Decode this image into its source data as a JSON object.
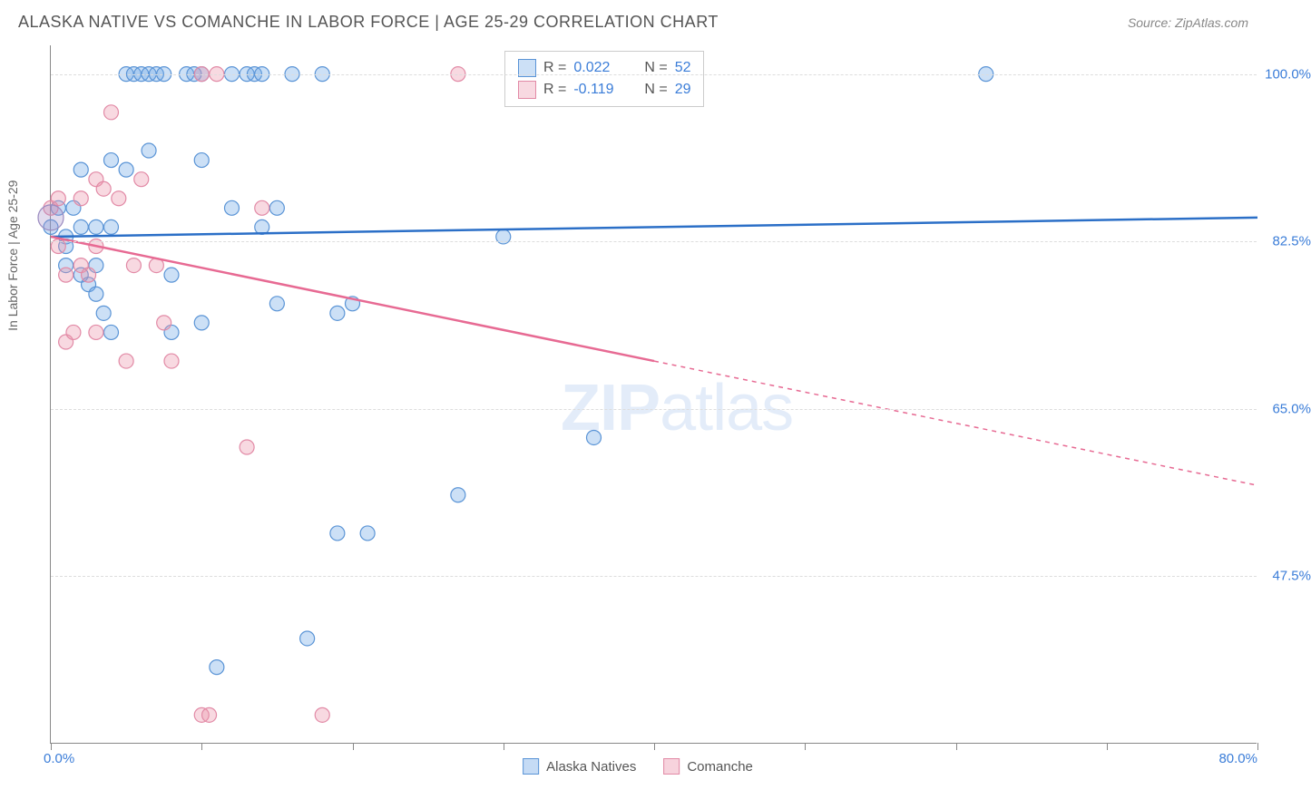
{
  "title": "ALASKA NATIVE VS COMANCHE IN LABOR FORCE | AGE 25-29 CORRELATION CHART",
  "source": "Source: ZipAtlas.com",
  "ylabel": "In Labor Force | Age 25-29",
  "watermark_bold": "ZIP",
  "watermark_rest": "atlas",
  "xaxis": {
    "min_label": "0.0%",
    "max_label": "80.0%",
    "min": 0,
    "max": 80
  },
  "yaxis": {
    "ticks": [
      {
        "v": 100.0,
        "label": "100.0%"
      },
      {
        "v": 82.5,
        "label": "82.5%"
      },
      {
        "v": 65.0,
        "label": "65.0%"
      },
      {
        "v": 47.5,
        "label": "47.5%"
      }
    ],
    "min": 30,
    "max": 103
  },
  "xtick_positions": [
    0,
    10,
    20,
    30,
    40,
    50,
    60,
    70,
    80
  ],
  "series": [
    {
      "name": "Alaska Natives",
      "color_fill": "rgba(110,165,230,0.35)",
      "color_stroke": "#5a94d6",
      "line_color": "#2b6fc7",
      "R": "0.022",
      "N": "52",
      "trend": {
        "x1": 0,
        "y1": 83.0,
        "x2": 80,
        "y2": 85.0,
        "dash_from_x": 80
      },
      "points": [
        [
          0,
          84
        ],
        [
          0.5,
          86
        ],
        [
          1,
          83
        ],
        [
          1,
          80
        ],
        [
          1,
          82
        ],
        [
          1.5,
          86
        ],
        [
          2,
          90
        ],
        [
          2,
          84
        ],
        [
          2,
          79
        ],
        [
          2.5,
          78
        ],
        [
          3,
          84
        ],
        [
          3,
          80
        ],
        [
          3,
          77
        ],
        [
          3.5,
          75
        ],
        [
          4,
          91
        ],
        [
          4,
          84
        ],
        [
          4,
          73
        ],
        [
          5,
          100
        ],
        [
          5,
          90
        ],
        [
          5.5,
          100
        ],
        [
          6,
          100
        ],
        [
          6.5,
          100
        ],
        [
          6.5,
          92
        ],
        [
          7,
          100
        ],
        [
          7.5,
          100
        ],
        [
          8,
          79
        ],
        [
          8,
          73
        ],
        [
          9,
          100
        ],
        [
          9.5,
          100
        ],
        [
          10,
          100
        ],
        [
          10,
          91
        ],
        [
          10,
          74
        ],
        [
          11,
          38
        ],
        [
          12,
          100
        ],
        [
          12,
          86
        ],
        [
          13,
          100
        ],
        [
          13.5,
          100
        ],
        [
          14,
          100
        ],
        [
          14,
          84
        ],
        [
          15,
          76
        ],
        [
          15,
          86
        ],
        [
          16,
          100
        ],
        [
          17,
          41
        ],
        [
          18,
          100
        ],
        [
          19,
          75
        ],
        [
          19,
          52
        ],
        [
          20,
          76
        ],
        [
          21,
          52
        ],
        [
          27,
          56
        ],
        [
          30,
          83
        ],
        [
          36,
          62
        ],
        [
          62,
          100
        ]
      ]
    },
    {
      "name": "Comanche",
      "color_fill": "rgba(235,145,170,0.35)",
      "color_stroke": "#e28aa6",
      "line_color": "#e76a93",
      "R": "-0.119",
      "N": "29",
      "trend": {
        "x1": 0,
        "y1": 83.0,
        "x2": 80,
        "y2": 57.0,
        "dash_from_x": 40
      },
      "points": [
        [
          0,
          86
        ],
        [
          0.5,
          82
        ],
        [
          0.5,
          87
        ],
        [
          1,
          79
        ],
        [
          1,
          72
        ],
        [
          1.5,
          73
        ],
        [
          2,
          87
        ],
        [
          2,
          80
        ],
        [
          2.5,
          79
        ],
        [
          3,
          89
        ],
        [
          3,
          82
        ],
        [
          3,
          73
        ],
        [
          3.5,
          88
        ],
        [
          4,
          96
        ],
        [
          4.5,
          87
        ],
        [
          5,
          70
        ],
        [
          5.5,
          80
        ],
        [
          6,
          89
        ],
        [
          7,
          80
        ],
        [
          7.5,
          74
        ],
        [
          8,
          70
        ],
        [
          10,
          100
        ],
        [
          10,
          33
        ],
        [
          10.5,
          33
        ],
        [
          11,
          100
        ],
        [
          13,
          61
        ],
        [
          14,
          86
        ],
        [
          18,
          33
        ],
        [
          27,
          100
        ]
      ]
    }
  ],
  "bottom_legend": [
    {
      "label": "Alaska Natives",
      "fill": "rgba(110,165,230,0.4)",
      "stroke": "#5a94d6"
    },
    {
      "label": "Comanche",
      "fill": "rgba(235,145,170,0.4)",
      "stroke": "#e28aa6"
    }
  ],
  "chart_bg": "#ffffff",
  "grid_color": "#dddddd",
  "text_color": "#555555",
  "tick_label_color": "#3b7dd8"
}
